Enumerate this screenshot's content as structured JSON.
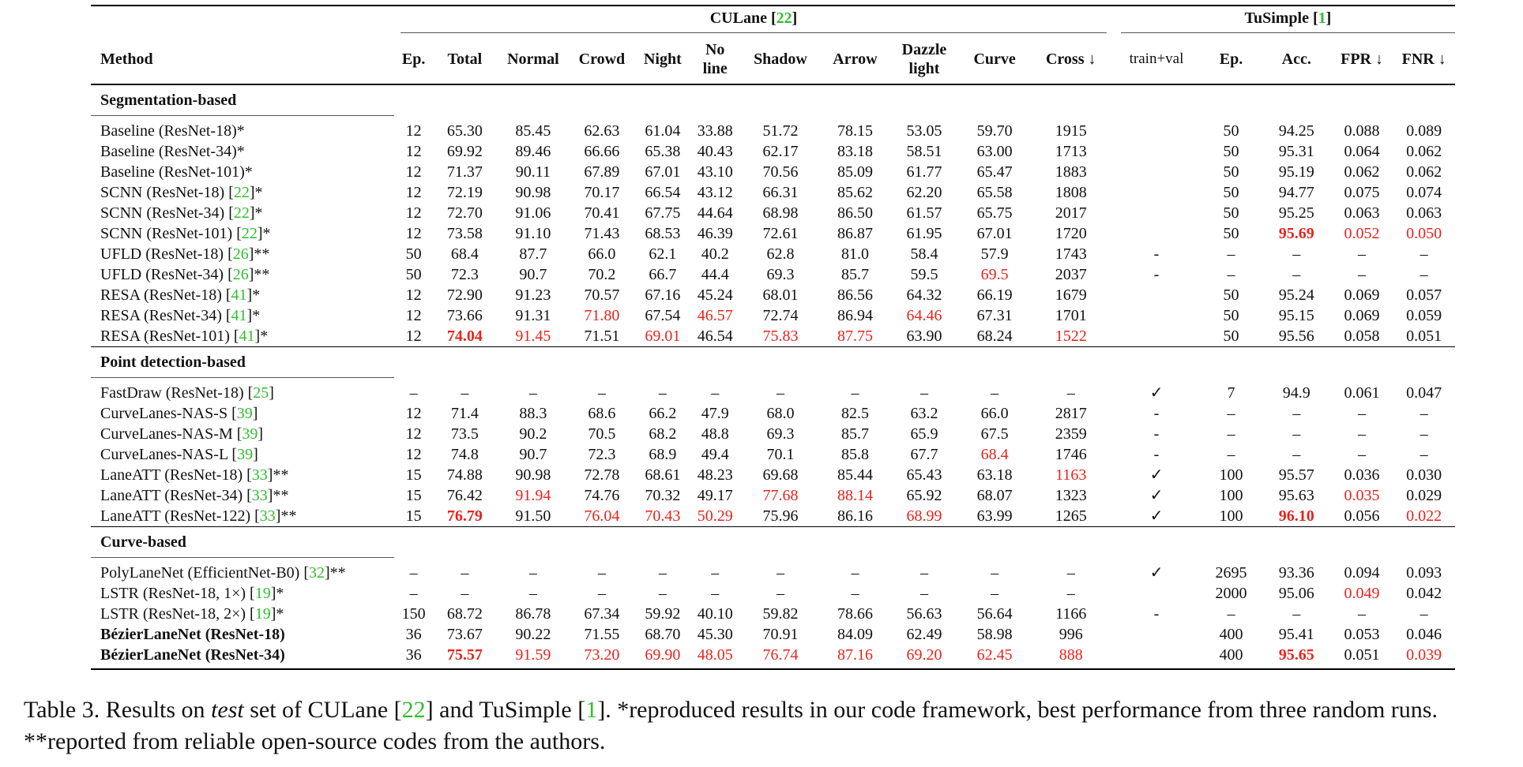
{
  "caption": {
    "label": "Table 3.",
    "pre": "Results on",
    "test_word": "test",
    "mid": "set of CULane [",
    "cite1": "22",
    "mid2": "] and TuSimple [",
    "cite2": "1",
    "post": "]. *reproduced results in our code framework, best performance from three random runs. **reported from reliable open-source codes from the authors."
  },
  "groups": {
    "culane": "CULane",
    "culane_cite": "22",
    "tusimple": "TuSimple",
    "tusimple_cite": "1"
  },
  "headers": {
    "method": "Method",
    "cols": [
      "Ep.",
      "Total",
      "Normal",
      "Crowd",
      "Night",
      "No line",
      "Shadow",
      "Arrow",
      "Dazzle light",
      "Curve",
      "Cross ↓",
      "train+val",
      "Ep.",
      "Acc.",
      "FPR ↓",
      "FNR ↓"
    ]
  },
  "sections": [
    {
      "title": "Segmentation-based",
      "rows": [
        {
          "name": "Baseline (ResNet-18)*",
          "cite": "",
          "suffix": "",
          "bold": false,
          "cells": [
            "12",
            "65.30",
            "85.45",
            "62.63",
            "61.04",
            "33.88",
            "51.72",
            "78.15",
            "53.05",
            "59.70",
            "1915",
            "",
            "50",
            "94.25",
            "0.088",
            "0.089"
          ],
          "hl": {}
        },
        {
          "name": "Baseline (ResNet-34)*",
          "cite": "",
          "suffix": "",
          "bold": false,
          "cells": [
            "12",
            "69.92",
            "89.46",
            "66.66",
            "65.38",
            "40.43",
            "62.17",
            "83.18",
            "58.51",
            "63.00",
            "1713",
            "",
            "50",
            "95.31",
            "0.064",
            "0.062"
          ],
          "hl": {}
        },
        {
          "name": "Baseline (ResNet-101)*",
          "cite": "",
          "suffix": "",
          "bold": false,
          "cells": [
            "12",
            "71.37",
            "90.11",
            "67.89",
            "67.01",
            "43.10",
            "70.56",
            "85.09",
            "61.77",
            "65.47",
            "1883",
            "",
            "50",
            "95.19",
            "0.062",
            "0.062"
          ],
          "hl": {}
        },
        {
          "name": "SCNN (ResNet-18) [",
          "cite": "22",
          "suffix": "]*",
          "bold": false,
          "cells": [
            "12",
            "72.19",
            "90.98",
            "70.17",
            "66.54",
            "43.12",
            "66.31",
            "85.62",
            "62.20",
            "65.58",
            "1808",
            "",
            "50",
            "94.77",
            "0.075",
            "0.074"
          ],
          "hl": {}
        },
        {
          "name": "SCNN (ResNet-34) [",
          "cite": "22",
          "suffix": "]*",
          "bold": false,
          "cells": [
            "12",
            "72.70",
            "91.06",
            "70.41",
            "67.75",
            "44.64",
            "68.98",
            "86.50",
            "61.57",
            "65.75",
            "2017",
            "",
            "50",
            "95.25",
            "0.063",
            "0.063"
          ],
          "hl": {}
        },
        {
          "name": "SCNN (ResNet-101) [",
          "cite": "22",
          "suffix": "]*",
          "bold": false,
          "cells": [
            "12",
            "73.58",
            "91.10",
            "71.43",
            "68.53",
            "46.39",
            "72.61",
            "86.87",
            "61.95",
            "67.01",
            "1720",
            "",
            "50",
            "95.69",
            "0.052",
            "0.050"
          ],
          "hl": {
            "13": "b",
            "14": "r",
            "15": "r"
          }
        },
        {
          "name": "UFLD (ResNet-18) [",
          "cite": "26",
          "suffix": "]**",
          "bold": false,
          "cells": [
            "50",
            "68.4",
            "87.7",
            "66.0",
            "62.1",
            "40.2",
            "62.8",
            "81.0",
            "58.4",
            "57.9",
            "1743",
            "-",
            "–",
            "–",
            "–",
            "–"
          ],
          "hl": {}
        },
        {
          "name": "UFLD (ResNet-34) [",
          "cite": "26",
          "suffix": "]**",
          "bold": false,
          "cells": [
            "50",
            "72.3",
            "90.7",
            "70.2",
            "66.7",
            "44.4",
            "69.3",
            "85.7",
            "59.5",
            "69.5",
            "2037",
            "-",
            "–",
            "–",
            "–",
            "–"
          ],
          "hl": {
            "9": "r"
          }
        },
        {
          "name": "RESA (ResNet-18) [",
          "cite": "41",
          "suffix": "]*",
          "bold": false,
          "cells": [
            "12",
            "72.90",
            "91.23",
            "70.57",
            "67.16",
            "45.24",
            "68.01",
            "86.56",
            "64.32",
            "66.19",
            "1679",
            "",
            "50",
            "95.24",
            "0.069",
            "0.057"
          ],
          "hl": {}
        },
        {
          "name": "RESA (ResNet-34) [",
          "cite": "41",
          "suffix": "]*",
          "bold": false,
          "cells": [
            "12",
            "73.66",
            "91.31",
            "71.80",
            "67.54",
            "46.57",
            "72.74",
            "86.94",
            "64.46",
            "67.31",
            "1701",
            "",
            "50",
            "95.15",
            "0.069",
            "0.059"
          ],
          "hl": {
            "3": "r",
            "5": "r",
            "8": "r"
          }
        },
        {
          "name": "RESA (ResNet-101) [",
          "cite": "41",
          "suffix": "]*",
          "bold": false,
          "cells": [
            "12",
            "74.04",
            "91.45",
            "71.51",
            "69.01",
            "46.54",
            "75.83",
            "87.75",
            "63.90",
            "68.24",
            "1522",
            "",
            "50",
            "95.56",
            "0.058",
            "0.051"
          ],
          "hl": {
            "1": "b",
            "2": "r",
            "4": "r",
            "6": "r",
            "7": "r",
            "10": "r"
          }
        }
      ]
    },
    {
      "title": "Point detection-based",
      "rows": [
        {
          "name": "FastDraw (ResNet-18) [",
          "cite": "25",
          "suffix": "]",
          "bold": false,
          "cells": [
            "–",
            "–",
            "–",
            "–",
            "–",
            "–",
            "–",
            "–",
            "–",
            "–",
            "–",
            "✓",
            "7",
            "94.9",
            "0.061",
            "0.047"
          ],
          "hl": {}
        },
        {
          "name": "CurveLanes-NAS-S [",
          "cite": "39",
          "suffix": "]",
          "bold": false,
          "cells": [
            "12",
            "71.4",
            "88.3",
            "68.6",
            "66.2",
            "47.9",
            "68.0",
            "82.5",
            "63.2",
            "66.0",
            "2817",
            "-",
            "–",
            "–",
            "–",
            "–"
          ],
          "hl": {}
        },
        {
          "name": "CurveLanes-NAS-M [",
          "cite": "39",
          "suffix": "]",
          "bold": false,
          "cells": [
            "12",
            "73.5",
            "90.2",
            "70.5",
            "68.2",
            "48.8",
            "69.3",
            "85.7",
            "65.9",
            "67.5",
            "2359",
            "-",
            "–",
            "–",
            "–",
            "–"
          ],
          "hl": {}
        },
        {
          "name": "CurveLanes-NAS-L [",
          "cite": "39",
          "suffix": "]",
          "bold": false,
          "cells": [
            "12",
            "74.8",
            "90.7",
            "72.3",
            "68.9",
            "49.4",
            "70.1",
            "85.8",
            "67.7",
            "68.4",
            "1746",
            "-",
            "–",
            "–",
            "–",
            "–"
          ],
          "hl": {
            "9": "r"
          }
        },
        {
          "name": "LaneATT (ResNet-18) [",
          "cite": "33",
          "suffix": "]**",
          "bold": false,
          "cells": [
            "15",
            "74.88",
            "90.98",
            "72.78",
            "68.61",
            "48.23",
            "69.68",
            "85.44",
            "65.43",
            "63.18",
            "1163",
            "✓",
            "100",
            "95.57",
            "0.036",
            "0.030"
          ],
          "hl": {
            "10": "r"
          }
        },
        {
          "name": "LaneATT (ResNet-34) [",
          "cite": "33",
          "suffix": "]**",
          "bold": false,
          "cells": [
            "15",
            "76.42",
            "91.94",
            "74.76",
            "70.32",
            "49.17",
            "77.68",
            "88.14",
            "65.92",
            "68.07",
            "1323",
            "✓",
            "100",
            "95.63",
            "0.035",
            "0.029"
          ],
          "hl": {
            "2": "r",
            "6": "r",
            "7": "r",
            "14": "r"
          }
        },
        {
          "name": "LaneATT (ResNet-122) [",
          "cite": "33",
          "suffix": "]**",
          "bold": false,
          "cells": [
            "15",
            "76.79",
            "91.50",
            "76.04",
            "70.43",
            "50.29",
            "75.96",
            "86.16",
            "68.99",
            "63.99",
            "1265",
            "✓",
            "100",
            "96.10",
            "0.056",
            "0.022"
          ],
          "hl": {
            "1": "b",
            "3": "r",
            "4": "r",
            "5": "r",
            "8": "r",
            "13": "b",
            "15": "r"
          }
        }
      ]
    },
    {
      "title": "Curve-based",
      "rows": [
        {
          "name": "PolyLaneNet (EfficientNet-B0) [",
          "cite": "32",
          "suffix": "]**",
          "bold": false,
          "cells": [
            "–",
            "–",
            "–",
            "–",
            "–",
            "–",
            "–",
            "–",
            "–",
            "–",
            "–",
            "✓",
            "2695",
            "93.36",
            "0.094",
            "0.093"
          ],
          "hl": {}
        },
        {
          "name": "LSTR (ResNet-18, 1×) [",
          "cite": "19",
          "suffix": "]*",
          "bold": false,
          "cells": [
            "–",
            "–",
            "–",
            "–",
            "–",
            "–",
            "–",
            "–",
            "–",
            "–",
            "–",
            "",
            "2000",
            "95.06",
            "0.049",
            "0.042"
          ],
          "hl": {
            "14": "r"
          }
        },
        {
          "name": "LSTR (ResNet-18, 2×) [",
          "cite": "19",
          "suffix": "]*",
          "bold": false,
          "cells": [
            "150",
            "68.72",
            "86.78",
            "67.34",
            "59.92",
            "40.10",
            "59.82",
            "78.66",
            "56.63",
            "56.64",
            "1166",
            "-",
            "–",
            "–",
            "–",
            "–"
          ],
          "hl": {}
        },
        {
          "name": "BézierLaneNet (ResNet-18)",
          "cite": "",
          "suffix": "",
          "bold": true,
          "cells": [
            "36",
            "73.67",
            "90.22",
            "71.55",
            "68.70",
            "45.30",
            "70.91",
            "84.09",
            "62.49",
            "58.98",
            "996",
            "",
            "400",
            "95.41",
            "0.053",
            "0.046"
          ],
          "hl": {}
        },
        {
          "name": "BézierLaneNet (ResNet-34)",
          "cite": "",
          "suffix": "",
          "bold": true,
          "cells": [
            "36",
            "75.57",
            "91.59",
            "73.20",
            "69.90",
            "48.05",
            "76.74",
            "87.16",
            "69.20",
            "62.45",
            "888",
            "",
            "400",
            "95.65",
            "0.051",
            "0.039"
          ],
          "hl": {
            "1": "b",
            "2": "r",
            "3": "r",
            "4": "r",
            "5": "r",
            "6": "r",
            "7": "r",
            "8": "r",
            "9": "r",
            "10": "r",
            "13": "b",
            "15": "r"
          }
        }
      ]
    }
  ]
}
